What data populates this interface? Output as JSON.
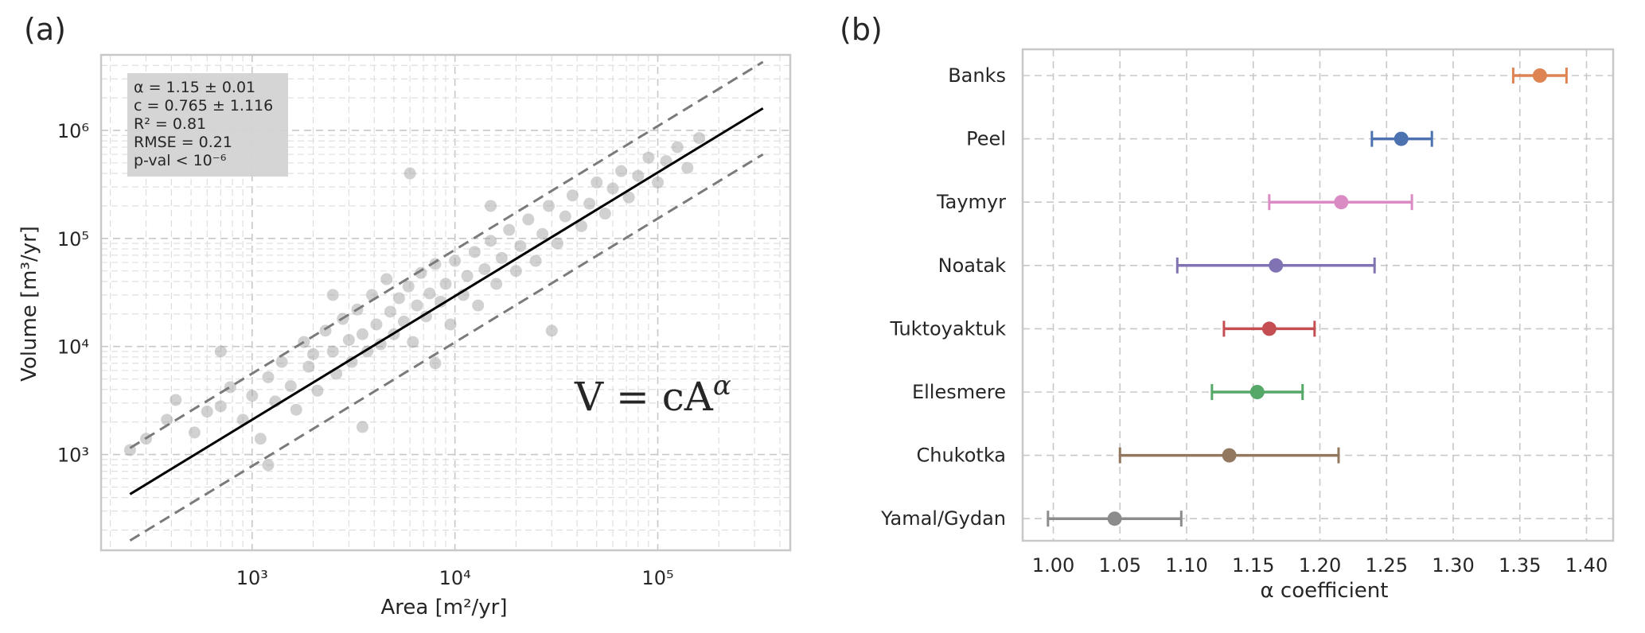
{
  "chart_data": [
    {
      "panel": "(a)",
      "type": "scatter",
      "xlabel": "Area [m²/yr]",
      "ylabel": "Volume [m³/yr]",
      "x_scale": "log",
      "y_scale": "log",
      "xlim": [
        180,
        450000
      ],
      "ylim": [
        130,
        5000000
      ],
      "x_ticks": [
        {
          "value": 1000,
          "label": "10³"
        },
        {
          "value": 10000,
          "label": "10⁴"
        },
        {
          "value": 100000,
          "label": "10⁵"
        }
      ],
      "y_ticks": [
        {
          "value": 1000,
          "label": "10³"
        },
        {
          "value": 10000,
          "label": "10⁴"
        },
        {
          "value": 100000,
          "label": "10⁵"
        },
        {
          "value": 1000000,
          "label": "10⁶"
        }
      ],
      "grid": true,
      "point_color": "#9a9a9a",
      "points": [
        [
          250,
          1100
        ],
        [
          300,
          1400
        ],
        [
          420,
          3200
        ],
        [
          380,
          2100
        ],
        [
          600,
          2500
        ],
        [
          520,
          1600
        ],
        [
          700,
          2800
        ],
        [
          780,
          4200
        ],
        [
          1000,
          3500
        ],
        [
          900,
          2100
        ],
        [
          1200,
          5200
        ],
        [
          1100,
          1400
        ],
        [
          1300,
          3100
        ],
        [
          1400,
          7200
        ],
        [
          1550,
          4300
        ],
        [
          1650,
          2600
        ],
        [
          1800,
          11000
        ],
        [
          1900,
          6500
        ],
        [
          2000,
          8500
        ],
        [
          2100,
          3900
        ],
        [
          2300,
          14000
        ],
        [
          2500,
          9000
        ],
        [
          2600,
          5600
        ],
        [
          2800,
          18000
        ],
        [
          3000,
          11500
        ],
        [
          3100,
          7200
        ],
        [
          3300,
          22000
        ],
        [
          3500,
          13000
        ],
        [
          3700,
          9000
        ],
        [
          3900,
          30000
        ],
        [
          4100,
          16000
        ],
        [
          4300,
          10500
        ],
        [
          4600,
          42000
        ],
        [
          4800,
          21000
        ],
        [
          5000,
          13000
        ],
        [
          5300,
          28000
        ],
        [
          5600,
          17000
        ],
        [
          5900,
          36000
        ],
        [
          6200,
          11000
        ],
        [
          6500,
          24000
        ],
        [
          6800,
          48000
        ],
        [
          7200,
          19000
        ],
        [
          7500,
          31000
        ],
        [
          8000,
          58000
        ],
        [
          8500,
          26000
        ],
        [
          9000,
          38000
        ],
        [
          9500,
          16000
        ],
        [
          10000,
          62000
        ],
        [
          11000,
          30000
        ],
        [
          11500,
          45000
        ],
        [
          12500,
          75000
        ],
        [
          13000,
          24000
        ],
        [
          14000,
          52000
        ],
        [
          15000,
          95000
        ],
        [
          16000,
          38000
        ],
        [
          17000,
          66000
        ],
        [
          18500,
          120000
        ],
        [
          20000,
          50000
        ],
        [
          21000,
          85000
        ],
        [
          23000,
          150000
        ],
        [
          25000,
          62000
        ],
        [
          27000,
          110000
        ],
        [
          29000,
          200000
        ],
        [
          32000,
          90000
        ],
        [
          35000,
          160000
        ],
        [
          38000,
          250000
        ],
        [
          42000,
          130000
        ],
        [
          46000,
          210000
        ],
        [
          50000,
          330000
        ],
        [
          55000,
          170000
        ],
        [
          60000,
          290000
        ],
        [
          66000,
          420000
        ],
        [
          72000,
          240000
        ],
        [
          80000,
          380000
        ],
        [
          90000,
          560000
        ],
        [
          100000,
          330000
        ],
        [
          110000,
          520000
        ],
        [
          125000,
          700000
        ],
        [
          140000,
          450000
        ],
        [
          160000,
          850000
        ],
        [
          6000,
          400000
        ],
        [
          3500,
          1800
        ],
        [
          8000,
          7000
        ],
        [
          2500,
          30000
        ],
        [
          30000,
          14000
        ],
        [
          15000,
          200000
        ],
        [
          1200,
          800
        ],
        [
          700,
          9000
        ]
      ],
      "fit_line": {
        "x": [
          250,
          330000
        ],
        "y": [
          430,
          1600000
        ],
        "color": "#000000"
      },
      "upper_bound": {
        "x": [
          250,
          330000
        ],
        "y": [
          1150,
          4300000
        ],
        "color": "#7a7a7a"
      },
      "lower_bound": {
        "x": [
          250,
          330000
        ],
        "y": [
          160,
          600000
        ],
        "color": "#7a7a7a"
      },
      "stats": [
        "α = 1.15 ± 0.01",
        "c = 0.765 ± 1.116",
        "R² = 0.81",
        "RMSE = 0.21",
        "p-val  < 10⁻⁶"
      ],
      "formula": "V = cA^α"
    },
    {
      "panel": "(b)",
      "type": "errorbar",
      "xlabel": "α coefficient",
      "xlim": [
        0.977,
        1.42
      ],
      "x_ticks": [
        1.0,
        1.05,
        1.1,
        1.15,
        1.2,
        1.25,
        1.3,
        1.35,
        1.4
      ],
      "x_tick_labels": [
        "1.00",
        "1.05",
        "1.10",
        "1.15",
        "1.20",
        "1.25",
        "1.30",
        "1.35",
        "1.40"
      ],
      "grid": true,
      "categories": [
        "Banks",
        "Peel",
        "Taymyr",
        "Noatak",
        "Tuktoyaktuk",
        "Ellesmere",
        "Chukotka",
        "Yamal/Gydan"
      ],
      "values": [
        1.365,
        1.261,
        1.216,
        1.167,
        1.162,
        1.153,
        1.132,
        1.046
      ],
      "lower": [
        1.345,
        1.239,
        1.162,
        1.093,
        1.128,
        1.119,
        1.05,
        0.996
      ],
      "upper": [
        1.385,
        1.284,
        1.269,
        1.241,
        1.196,
        1.187,
        1.214,
        1.096
      ],
      "colors": [
        "#dd8452",
        "#4c72b0",
        "#da8bc3",
        "#8172b3",
        "#c44e52",
        "#55a868",
        "#937860",
        "#8c8c8c"
      ]
    }
  ]
}
